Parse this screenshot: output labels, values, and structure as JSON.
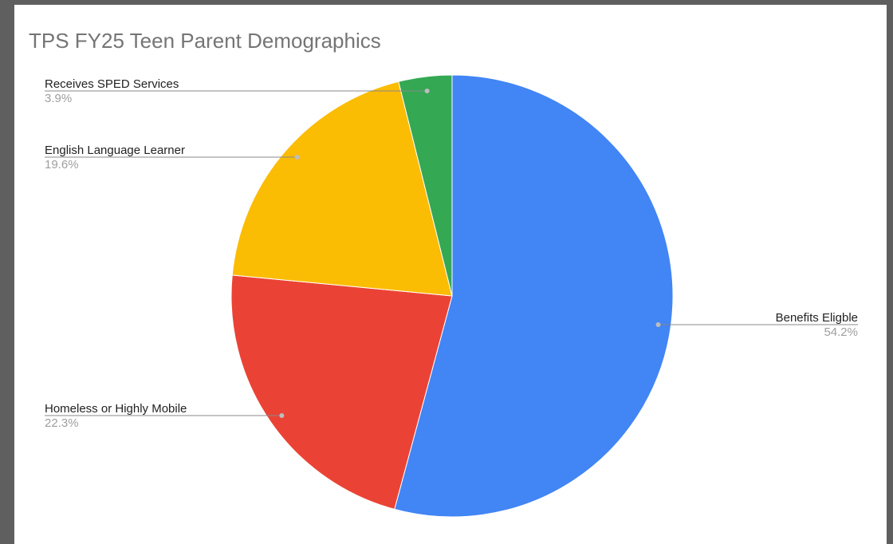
{
  "chart_data": {
    "type": "pie",
    "title": "TPS FY25 Teen Parent Demographics",
    "slices": [
      {
        "label": "Benefits Eligble",
        "percent_label": "54.2%",
        "value": 54.2,
        "color": "#4285f4",
        "label_side": "right"
      },
      {
        "label": "Homeless or Highly Mobile",
        "percent_label": "22.3%",
        "value": 22.3,
        "color": "#ea4335",
        "label_side": "left"
      },
      {
        "label": "English Language Learner",
        "percent_label": "19.6%",
        "value": 19.6,
        "color": "#fbbc04",
        "label_side": "left"
      },
      {
        "label": "Receives SPED Services",
        "percent_label": "3.9%",
        "value": 3.9,
        "color": "#34a853",
        "label_side": "left"
      }
    ],
    "start_angle": "12 o'clock",
    "direction": "clockwise",
    "legend": "labels beside slices"
  }
}
